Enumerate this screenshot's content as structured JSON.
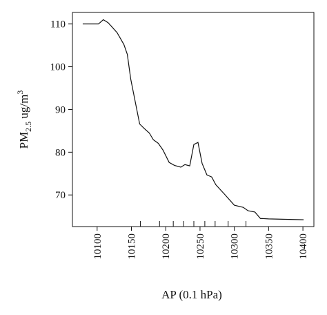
{
  "chart_data": {
    "type": "line",
    "xlabel": "AP (0.1 hPa)",
    "ylabel": {
      "main": "PM",
      "sub": "2.5",
      "unit": " ug/m",
      "sup": "3"
    },
    "x": [
      10079,
      10102,
      10109,
      10116,
      10129,
      10139,
      10144,
      10149,
      10162,
      10169,
      10176,
      10182,
      10189,
      10196,
      10205,
      10213,
      10222,
      10228,
      10235,
      10241,
      10247,
      10253,
      10260,
      10267,
      10273,
      10285,
      10300,
      10313,
      10320,
      10330,
      10338,
      10350,
      10401
    ],
    "series": [
      {
        "color": "#111111",
        "values": [
          110,
          110,
          111,
          110.3,
          108,
          105.2,
          102.9,
          97.1,
          86.6,
          85.5,
          84.5,
          82.9,
          82.1,
          80.5,
          77.6,
          76.9,
          76.5,
          77.1,
          76.8,
          81.8,
          82.3,
          77.4,
          74.7,
          74.2,
          72.4,
          70.3,
          67.6,
          67.1,
          66.3,
          66,
          64.5,
          64.4,
          64.2
        ]
      }
    ],
    "rug": [
      10163,
      10191,
      10211,
      10226,
      10241,
      10257,
      10272,
      10291,
      10317
    ],
    "xlim": [
      10064,
      10416
    ],
    "ylim": [
      62.6,
      112.7
    ],
    "xticks": [
      10100,
      10150,
      10200,
      10250,
      10300,
      10350,
      10400
    ],
    "yticks": [
      70,
      80,
      90,
      100,
      110
    ]
  }
}
